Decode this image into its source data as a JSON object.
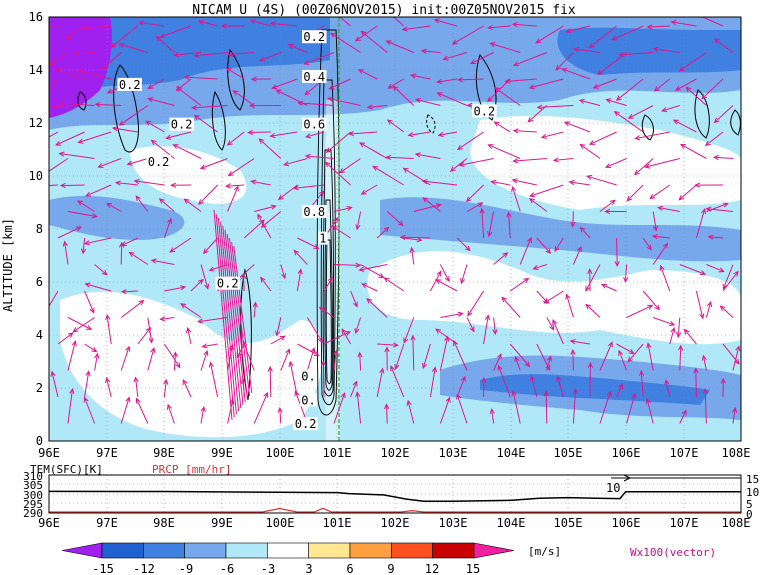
{
  "chart_data": [
    {
      "type": "heatmap",
      "title": "NICAM U (4S) (00Z06NOV2015) init:00Z05NOV2015 fix",
      "ylabel": "ALTITUDE [km]",
      "x_ticks": [
        "96E",
        "97E",
        "98E",
        "99E",
        "100E",
        "101E",
        "102E",
        "103E",
        "104E",
        "105E",
        "106E",
        "107E",
        "108E"
      ],
      "y_ticks": [
        "0",
        "2",
        "4",
        "6",
        "8",
        "10",
        "12",
        "14",
        "16"
      ],
      "xlim": [
        96,
        108
      ],
      "ylim": [
        0,
        16
      ],
      "contour_labels": [
        {
          "text": "0.2",
          "lon": 97.4,
          "alt": 13.4
        },
        {
          "text": "0.2",
          "lon": 98.3,
          "alt": 11.9
        },
        {
          "text": "0.2",
          "lon": 97.9,
          "alt": 10.5
        },
        {
          "text": "0.2",
          "lon": 99.1,
          "alt": 5.9
        },
        {
          "text": "0.2",
          "lon": 100.6,
          "alt": 15.2
        },
        {
          "text": "0.4",
          "lon": 100.6,
          "alt": 13.7
        },
        {
          "text": "0.6",
          "lon": 100.6,
          "alt": 11.9
        },
        {
          "text": "0.8",
          "lon": 100.6,
          "alt": 8.6
        },
        {
          "text": "1",
          "lon": 100.75,
          "alt": 7.6
        },
        {
          "text": "0.2",
          "lon": 103.55,
          "alt": 12.4
        },
        {
          "text": "0.",
          "lon": 100.5,
          "alt": 2.4
        },
        {
          "text": "0.",
          "lon": 100.5,
          "alt": 1.5
        },
        {
          "text": "0.2",
          "lon": 100.45,
          "alt": 0.6
        }
      ]
    },
    {
      "type": "line",
      "label_left": "TEM(SFC)[K]",
      "label_right": "PRCP [mm/hr]",
      "x_ticks": [
        "96E",
        "97E",
        "98E",
        "99E",
        "100E",
        "101E",
        "102E",
        "103E",
        "104E",
        "105E",
        "106E",
        "107E",
        "108E"
      ],
      "yleft_ticks": [
        "310",
        "305",
        "300",
        "295",
        "290"
      ],
      "yright_ticks": [
        "15",
        "10",
        "5",
        "0"
      ],
      "yleft_lim": [
        290,
        310
      ],
      "yright_lim": [
        0,
        15
      ],
      "annotation": "10",
      "series": [
        {
          "x": [
            96,
            98,
            100,
            101,
            101.2,
            101.8,
            102.2,
            102.5,
            103,
            104,
            104.5,
            105,
            105.5,
            105.9,
            106,
            108
          ],
          "values": [
            301.7,
            301.6,
            301.2,
            301,
            300.5,
            299.8,
            297.5,
            296.3,
            296.4,
            296.8,
            298.0,
            298.3,
            298.0,
            297.8,
            301.5,
            301.5
          ]
        },
        {
          "x": [
            96,
            99.7,
            100.0,
            100.3,
            100.6,
            100.75,
            100.9,
            102.1,
            102.3,
            102.5,
            108
          ],
          "values": [
            0,
            0,
            1.5,
            0,
            0,
            1.6,
            0,
            0,
            0.6,
            0,
            0
          ]
        }
      ]
    }
  ],
  "colorbar": {
    "ticks": [
      "-15",
      "-12",
      "-9",
      "-6",
      "-3",
      "3",
      "6",
      "9",
      "12",
      "15"
    ],
    "unit": "[m/s]",
    "colors": [
      "#a020f0",
      "#2060d0",
      "#4080e0",
      "#78a8ec",
      "#b0e8f8",
      "#ffffff",
      "#ffe890",
      "#ffa040",
      "#ff5020",
      "#c80000",
      "#f020a0"
    ]
  },
  "vector_label": "Wx100(vector)"
}
